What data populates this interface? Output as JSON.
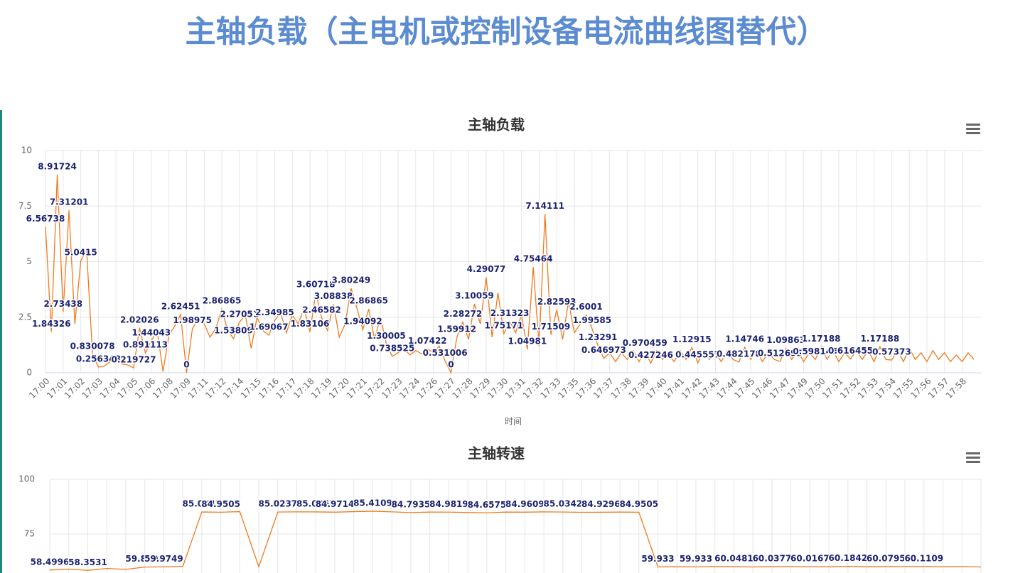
{
  "page_title": "主轴负载（主电机或控制设备电流曲线图替代）",
  "chart_data": [
    {
      "type": "line",
      "title": "主轴负载",
      "x_label": "时间",
      "color": "#f07a1c",
      "grid": true,
      "ylim": [
        0,
        10
      ],
      "yticks": [
        0,
        2.5,
        5,
        7.5,
        10
      ],
      "categories": [
        "17:00",
        null,
        null,
        "17:01",
        null,
        null,
        "17:02",
        null,
        null,
        "17:03",
        null,
        null,
        "17:04",
        null,
        null,
        "17:05",
        null,
        null,
        "17:06",
        null,
        null,
        "17:08",
        null,
        null,
        "17:09",
        null,
        null,
        "17:11",
        null,
        null,
        "17:12",
        null,
        null,
        "17:14",
        null,
        null,
        "17:15",
        null,
        null,
        "17:16",
        null,
        null,
        "17:17",
        null,
        null,
        "17:18",
        null,
        null,
        "17:19",
        null,
        null,
        "17:20",
        null,
        null,
        "17:21",
        null,
        null,
        "17:22",
        null,
        null,
        "17:23",
        null,
        null,
        "17:24",
        null,
        null,
        "17:26",
        null,
        null,
        "17:27",
        null,
        null,
        "17:28",
        null,
        null,
        "17:29",
        null,
        null,
        "17:30",
        null,
        null,
        "17:31",
        null,
        null,
        "17:32",
        null,
        null,
        "17:33",
        null,
        null,
        "17:35",
        null,
        null,
        "17:36",
        null,
        null,
        "17:37",
        null,
        null,
        "17:38",
        null,
        null,
        "17:39",
        null,
        null,
        "17:40",
        null,
        null,
        "17:41",
        null,
        null,
        "17:42",
        null,
        null,
        "17:43",
        null,
        null,
        "17:44",
        null,
        null,
        "17:45",
        null,
        null,
        "17:46",
        null,
        null,
        "17:47",
        null,
        null,
        "17:49",
        null,
        null,
        "17:50",
        null,
        null,
        "17:51",
        null,
        null,
        "17:52",
        null,
        null,
        "17:53",
        null,
        null,
        "17:54",
        null,
        null,
        "17:55",
        null,
        null,
        "17:56",
        null,
        null,
        "17:57",
        null,
        null,
        "17:58",
        null,
        null
      ],
      "values": [
        6.56738,
        1.84326,
        8.91724,
        2.73438,
        7.31201,
        2.2,
        5.0415,
        5.5,
        0.830078,
        0.256348,
        0.3,
        0.5,
        0.6,
        0.4,
        0.35,
        0.219727,
        2.02026,
        0.891113,
        1.44043,
        1.9,
        0.05,
        1.7,
        2.1,
        2.62451,
        0,
        1.98975,
        2.4,
        2.2,
        1.6,
        2.0,
        2.86865,
        1.9,
        1.53809,
        2.27051,
        2.6,
        1.1,
        2.5,
        1.9,
        1.69067,
        2.34985,
        2.7,
        1.8,
        2.6,
        2.2,
        2.9,
        1.83106,
        3.60718,
        2.46582,
        1.9,
        3.08838,
        1.6,
        2.2,
        3.80249,
        2.9,
        1.94092,
        2.86865,
        1.5,
        2.5,
        1.30005,
        0.738525,
        0.9,
        1.1,
        0.8,
        1.0,
        0.85,
        1.07422,
        0.9,
        1.2,
        0.531006,
        0,
        1.59912,
        2.28272,
        1.5,
        3.10059,
        2.2,
        4.29077,
        1.6,
        3.6,
        1.75171,
        2.31323,
        1.8,
        2.6,
        1.04981,
        4.75464,
        1.2,
        7.14111,
        1.71509,
        2.82593,
        1.5,
        3.2,
        1.8,
        2.2,
        2.6001,
        1.99585,
        1.23291,
        0.646973,
        0.9,
        0.5,
        0.9,
        0.6,
        1.0,
        0.5,
        0.970459,
        0.427246,
        1.0,
        0.6,
        0.8,
        0.5,
        1.0,
        0.6,
        1.12915,
        0.445557,
        1.0,
        0.6,
        0.9,
        0.5,
        1.0,
        0.6,
        0.482178,
        1.14746,
        0.6,
        1.0,
        0.5,
        0.9,
        0.6,
        0.512695,
        1.09863,
        0.6,
        1.0,
        0.5,
        0.9,
        0.598145,
        1.17188,
        0.6,
        1.0,
        0.5,
        0.9,
        0.616455,
        1.0,
        0.6,
        1.0,
        0.5,
        1.17188,
        0.6,
        0.57373,
        1.0,
        0.5,
        1.1,
        0.6,
        0.9,
        0.5,
        1.0,
        0.6,
        0.9,
        0.5,
        0.8,
        0.5,
        0.9,
        0.6
      ],
      "value_labels": [
        "6.56738",
        "1.84326",
        "8.91724",
        "2.73438",
        "7.31201",
        null,
        "5.0415",
        null,
        "0.830078",
        "0.256348",
        null,
        null,
        null,
        null,
        null,
        "0.219727",
        "2.02026",
        "0.891113",
        "1.44043",
        null,
        null,
        null,
        null,
        "2.62451",
        "0",
        "1.98975",
        null,
        null,
        null,
        null,
        "2.86865",
        null,
        "1.53809",
        "2.27051",
        null,
        null,
        null,
        null,
        "1.69067",
        "2.34985",
        null,
        null,
        null,
        null,
        null,
        "1.83106",
        "3.60718",
        "2.46582",
        null,
        "3.08838",
        null,
        null,
        "3.80249",
        null,
        "1.94092",
        "2.86865",
        null,
        null,
        "1.30005",
        "0.738525",
        null,
        null,
        null,
        null,
        null,
        "1.07422",
        null,
        null,
        "0.531006",
        "0",
        "1.59912",
        "2.28272",
        null,
        "3.10059",
        null,
        "4.29077",
        null,
        null,
        "1.75171",
        "2.31323",
        null,
        null,
        "1.04981",
        "4.75464",
        null,
        "7.14111",
        "1.71509",
        "2.82593",
        null,
        null,
        null,
        null,
        "2.6001",
        "1.99585",
        "1.23291",
        "0.646973",
        null,
        null,
        null,
        null,
        null,
        null,
        "0.970459",
        "0.427246",
        null,
        null,
        null,
        null,
        null,
        null,
        "1.12915",
        "0.445557",
        null,
        null,
        null,
        null,
        null,
        null,
        "0.482178",
        "1.14746",
        null,
        null,
        null,
        null,
        null,
        "0.512695",
        "1.09863",
        null,
        null,
        null,
        null,
        "0.598145",
        "1.17188",
        null,
        null,
        null,
        null,
        "0.616455",
        null,
        null,
        null,
        null,
        "1.17188",
        null,
        "0.57373",
        null,
        null,
        null,
        null,
        null,
        null,
        null,
        null,
        null,
        null,
        null,
        null,
        null,
        null
      ]
    },
    {
      "type": "line",
      "title": "主轴转速",
      "color": "#f07a1c",
      "grid": true,
      "ylim": [
        50,
        100
      ],
      "yticks": [
        75,
        100
      ],
      "categories": [
        null,
        null,
        null,
        null,
        null,
        null,
        null,
        null,
        null,
        null,
        null,
        null,
        null,
        null,
        null,
        null,
        null,
        null,
        null,
        null,
        null,
        null,
        null,
        null,
        null,
        null,
        null,
        null,
        null,
        null,
        null,
        null,
        null,
        null,
        null,
        null,
        null,
        null,
        null,
        null,
        null,
        null,
        null,
        null,
        null,
        null,
        null,
        null,
        null,
        null
      ],
      "values": [
        58.4996,
        58.9,
        58.3531,
        59.2,
        58.8,
        59.8598,
        59.9749,
        60.1,
        85.0342,
        84.9505,
        85.2,
        60.0,
        85.0237,
        85.1,
        85.0865,
        84.9714,
        85.2,
        85.4109,
        85.1,
        84.7935,
        85.0,
        84.9819,
        84.8,
        84.6575,
        85.0,
        84.9609,
        85.1,
        85.0342,
        84.9,
        84.9296,
        85.0,
        84.9505,
        59.933,
        60.0,
        59.933,
        60.1,
        60.0481,
        59.9,
        60.0377,
        60.1,
        60.0167,
        60.0,
        60.1842,
        60.0,
        60.0795,
        60.1,
        60.1109,
        60.0,
        60.1,
        59.9
      ],
      "value_labels": [
        "58.4996",
        null,
        "58.3531",
        null,
        null,
        "59.8598",
        "59.9749",
        null,
        "85.0342",
        "84.9505",
        null,
        null,
        "85.0237",
        null,
        "85.0865",
        "84.9714",
        null,
        "85.4109",
        null,
        "84.7935",
        null,
        "84.9819",
        null,
        "84.6575",
        null,
        "84.9609",
        null,
        "85.0342",
        null,
        "84.9296",
        null,
        "84.9505",
        "59.933",
        null,
        "59.933",
        null,
        "60.0481",
        null,
        "60.0377",
        null,
        "60.0167",
        null,
        "60.1842",
        null,
        "60.0795",
        null,
        "60.1109",
        null,
        null,
        null
      ]
    }
  ]
}
